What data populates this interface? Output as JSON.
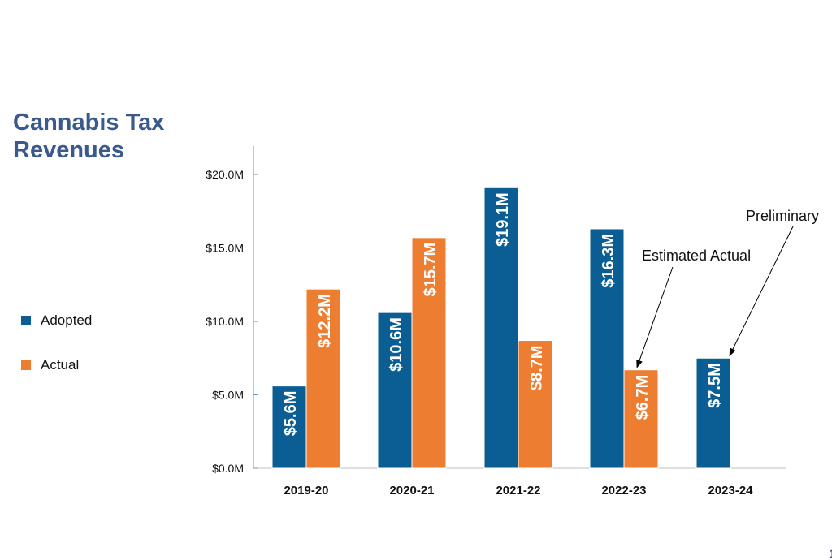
{
  "chart_data": {
    "type": "bar",
    "title": "Cannabis Tax Revenues",
    "categories": [
      "2019-20",
      "2020-21",
      "2021-22",
      "2022-23",
      "2023-24"
    ],
    "series": [
      {
        "name": "Adopted",
        "color": "#0b5e93",
        "values": [
          5.6,
          10.6,
          19.1,
          16.3,
          7.5
        ],
        "labels": [
          "$5.6M",
          "$10.6M",
          "$19.1M",
          "$16.3M",
          "$7.5M"
        ]
      },
      {
        "name": "Actual",
        "color": "#ed7d31",
        "values": [
          12.2,
          15.7,
          8.7,
          6.7,
          null
        ],
        "labels": [
          "$12.2M",
          "$15.7M",
          "$8.7M",
          "$6.7M",
          ""
        ]
      }
    ],
    "ylim": [
      0,
      20
    ],
    "yticks": [
      0,
      5,
      10,
      15,
      20
    ],
    "ytick_labels": [
      "$0.0M",
      "$5.0M",
      "$10.0M",
      "$15.0M",
      "$20.0M"
    ],
    "legend_position": "left",
    "annotations": [
      {
        "text": "Estimated Actual",
        "target_category": "2022-23",
        "target_series": "Actual"
      },
      {
        "text": "Preliminary",
        "target_category": "2023-24",
        "target_series": "Adopted"
      }
    ]
  },
  "page_number": "1"
}
